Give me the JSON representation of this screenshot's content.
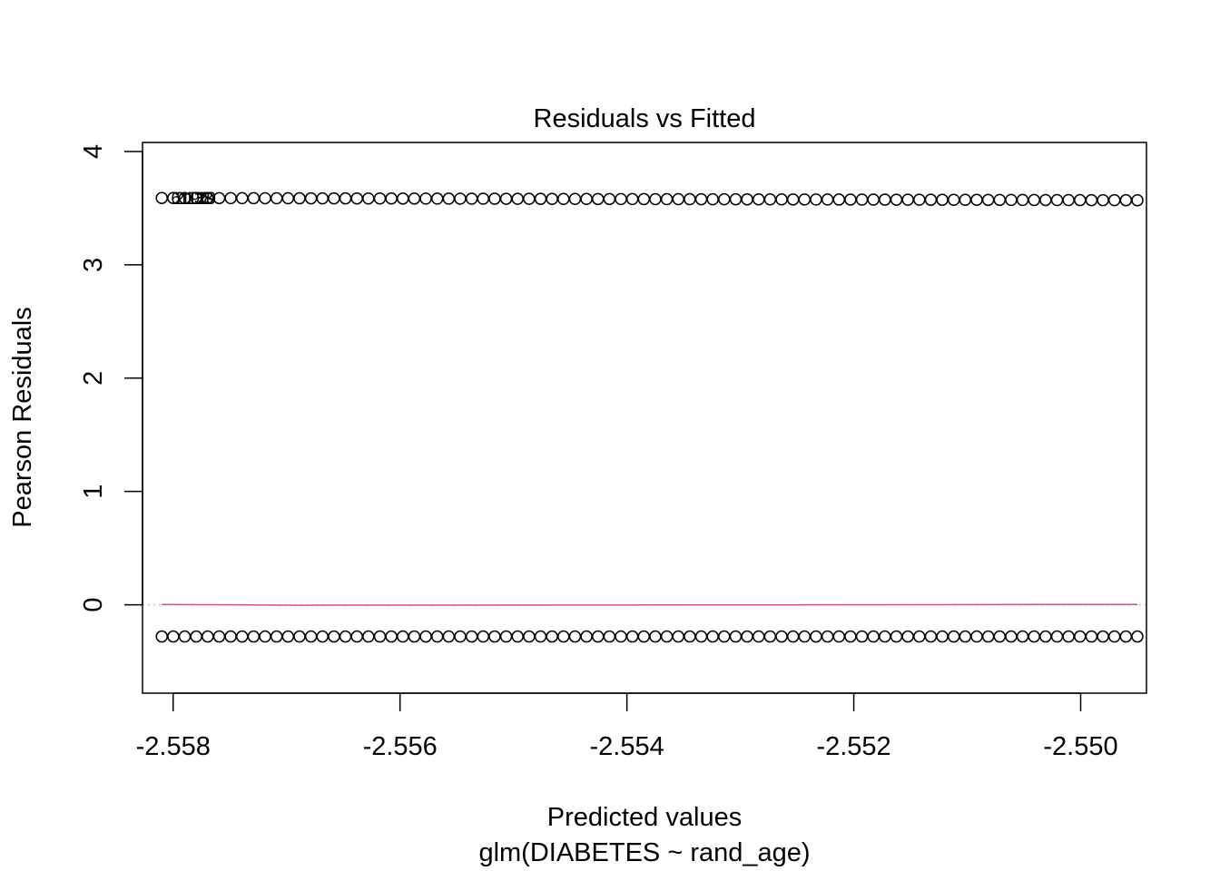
{
  "chart_data": {
    "type": "scatter",
    "title": "Residuals vs Fitted",
    "xlabel": "Predicted values",
    "sublabel": "glm(DIABETES ~ rand_age)",
    "ylabel": "Pearson Residuals",
    "xlim": [
      -2.55827,
      -2.54942
    ],
    "ylim": [
      -0.78,
      4.08
    ],
    "x_ticks": [
      -2.558,
      -2.556,
      -2.554,
      -2.552,
      -2.55
    ],
    "x_tick_labels": [
      "-2.558",
      "-2.556",
      "-2.554",
      "-2.552",
      "-2.550"
    ],
    "y_ticks": [
      0,
      1,
      2,
      3,
      4
    ],
    "y_tick_labels": [
      "0",
      "1",
      "2",
      "3",
      "4"
    ],
    "x_range": [
      -2.5581,
      -2.5495
    ],
    "n_points_per_band": 86,
    "upper_band": {
      "y_start": 3.59,
      "y_end": 3.57
    },
    "lower_band": {
      "y": -0.28
    },
    "smoother": {
      "x": [
        -2.5581,
        -2.5569,
        -2.5525,
        -2.5503,
        -2.5495
      ],
      "y": [
        0.003,
        -0.004,
        -0.001,
        0.003,
        0.003
      ],
      "color": "#DF536B"
    },
    "reference_line": {
      "y": 0,
      "color": "#BEBEBE",
      "style": "dotted"
    },
    "point_labels": [
      "6196",
      "2138",
      "1129"
    ],
    "colors": {
      "points": "#000000",
      "smoother": "#DF536B",
      "reference": "#BEBEBE"
    }
  }
}
